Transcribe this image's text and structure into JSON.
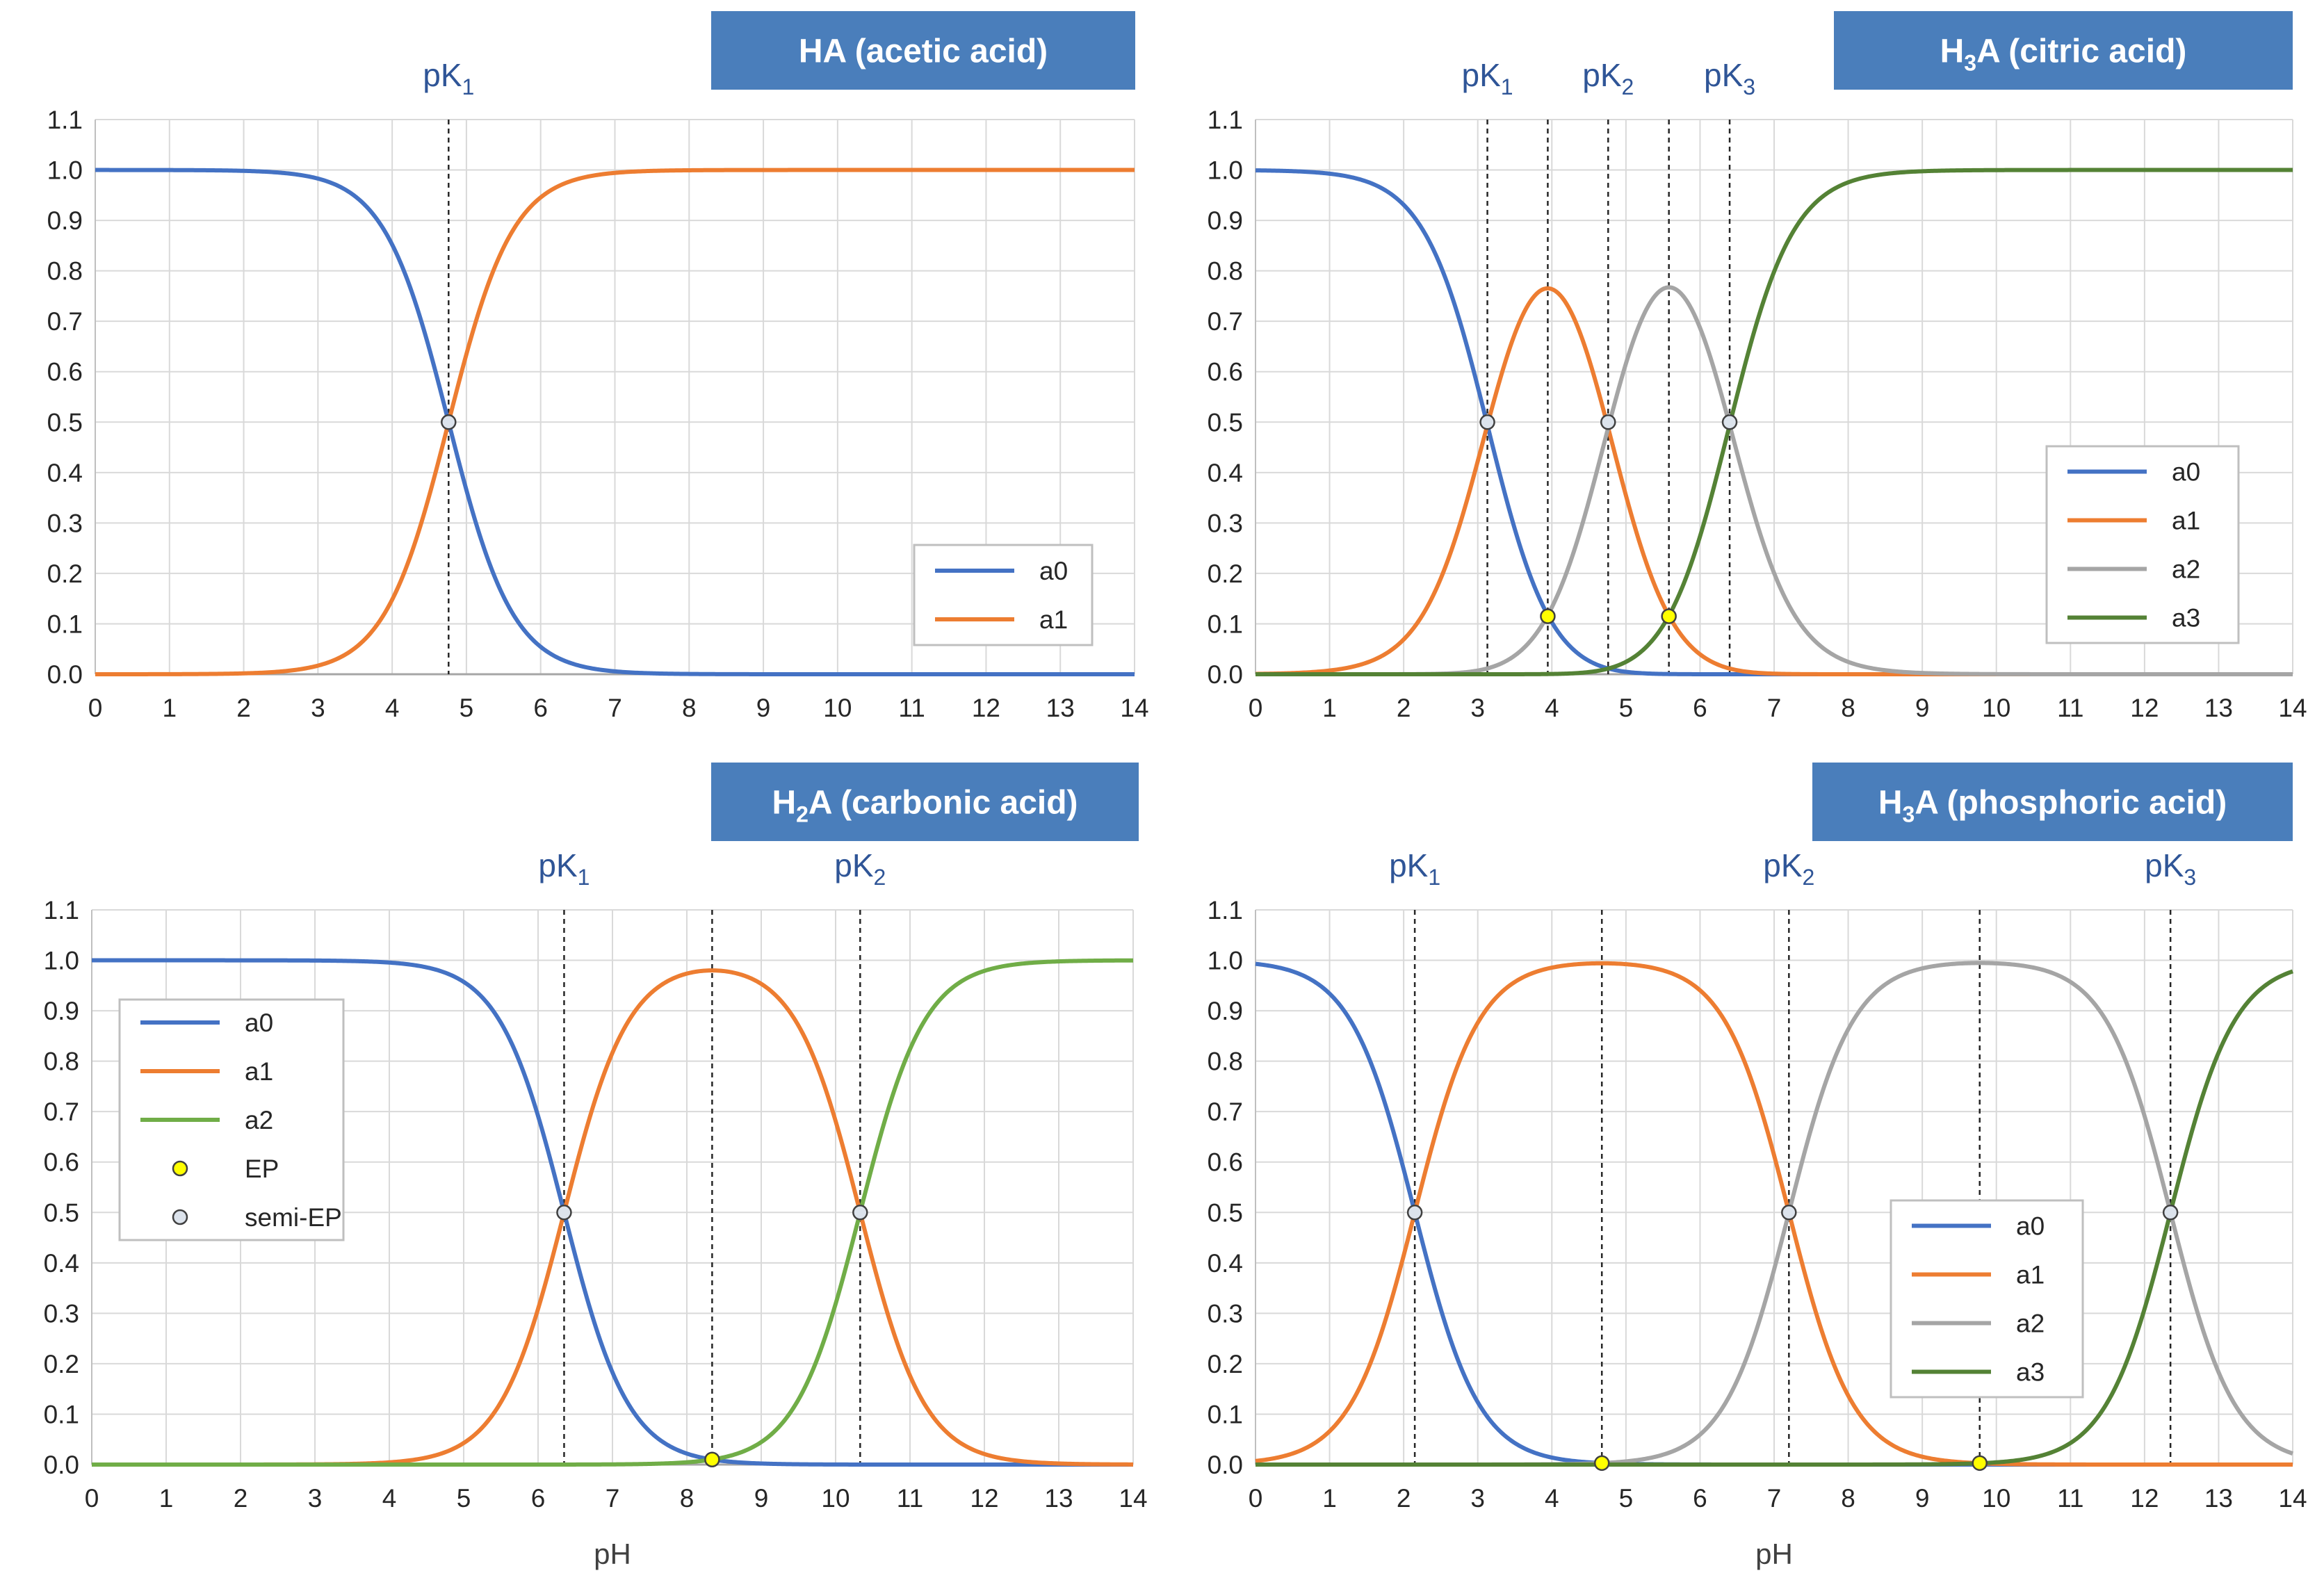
{
  "colors": {
    "a0": "#4472C4",
    "a1": "#ED7D31",
    "a2_gray": "#A5A5A5",
    "a2_green": "#70AD47",
    "a3": "#548235",
    "title_bg": "#4A7EBB",
    "pk_text": "#2F5597",
    "ep_fill": "#FFFF00",
    "semi_ep_fill": "#DCE3EC"
  },
  "chart_data": [
    {
      "type": "line",
      "title": {
        "text": "HA (acetic acid)",
        "pre": "HA",
        "sub": "",
        "post": " (acetic acid)"
      },
      "xlabel": "",
      "xlim": [
        0,
        14
      ],
      "ylim": [
        0,
        1.1
      ],
      "xticks": [
        "0",
        "1",
        "2",
        "3",
        "4",
        "5",
        "6",
        "7",
        "8",
        "9",
        "10",
        "11",
        "12",
        "13",
        "14"
      ],
      "yticks": [
        "0.0",
        "0.1",
        "0.2",
        "0.3",
        "0.4",
        "0.5",
        "0.6",
        "0.7",
        "0.8",
        "0.9",
        "1.0",
        "1.1"
      ],
      "pKa": [
        4.76
      ],
      "vlines": [
        4.76
      ],
      "pk_labels": [
        {
          "base": "pK",
          "sub": "1",
          "x": 4.76
        }
      ],
      "series": [
        {
          "name": "a0",
          "index": 0,
          "color": "#4472C4"
        },
        {
          "name": "a1",
          "index": 1,
          "color": "#ED7D31"
        }
      ],
      "ep": [],
      "semi_ep": [
        {
          "x": 4.76,
          "y": 0.5
        }
      ],
      "legend": {
        "position": "lower-right",
        "entries": [
          "a0",
          "a1"
        ]
      }
    },
    {
      "type": "line",
      "title": {
        "text": "H3A (citric acid)",
        "pre": "H",
        "sub": "3",
        "post": "A (citric acid)"
      },
      "xlabel": "",
      "xlim": [
        0,
        14
      ],
      "ylim": [
        0,
        1.1
      ],
      "xticks": [
        "0",
        "1",
        "2",
        "3",
        "4",
        "5",
        "6",
        "7",
        "8",
        "9",
        "10",
        "11",
        "12",
        "13",
        "14"
      ],
      "yticks": [
        "0.0",
        "0.1",
        "0.2",
        "0.3",
        "0.4",
        "0.5",
        "0.6",
        "0.7",
        "0.8",
        "0.9",
        "1.0",
        "1.1"
      ],
      "pKa": [
        3.13,
        4.76,
        6.4
      ],
      "vlines": [
        3.13,
        3.945,
        4.76,
        5.58,
        6.4
      ],
      "pk_labels": [
        {
          "base": "pK",
          "sub": "1",
          "x": 3.13
        },
        {
          "base": "pK",
          "sub": "2",
          "x": 4.76
        },
        {
          "base": "pK",
          "sub": "3",
          "x": 6.4
        }
      ],
      "series": [
        {
          "name": "a0",
          "index": 0,
          "color": "#4472C4"
        },
        {
          "name": "a1",
          "index": 1,
          "color": "#ED7D31"
        },
        {
          "name": "a2",
          "index": 2,
          "color": "#A5A5A5"
        },
        {
          "name": "a3",
          "index": 3,
          "color": "#548235"
        }
      ],
      "ep": [
        {
          "x": 3.945,
          "y": 0.115
        },
        {
          "x": 5.58,
          "y": 0.115
        }
      ],
      "semi_ep": [
        {
          "x": 3.13,
          "y": 0.5
        },
        {
          "x": 4.76,
          "y": 0.5
        },
        {
          "x": 6.4,
          "y": 0.5
        }
      ],
      "legend": {
        "position": "right-middle",
        "entries": [
          "a0",
          "a1",
          "a2",
          "a3"
        ]
      }
    },
    {
      "type": "line",
      "title": {
        "text": "H2A (carbonic acid)",
        "pre": "H",
        "sub": "2",
        "post": "A (carbonic acid)"
      },
      "xlabel": "pH",
      "xlim": [
        0,
        14
      ],
      "ylim": [
        0,
        1.1
      ],
      "xticks": [
        "0",
        "1",
        "2",
        "3",
        "4",
        "5",
        "6",
        "7",
        "8",
        "9",
        "10",
        "11",
        "12",
        "13",
        "14"
      ],
      "yticks": [
        "0.0",
        "0.1",
        "0.2",
        "0.3",
        "0.4",
        "0.5",
        "0.6",
        "0.7",
        "0.8",
        "0.9",
        "1.0",
        "1.1"
      ],
      "pKa": [
        6.35,
        10.33
      ],
      "vlines": [
        6.35,
        8.34,
        10.33
      ],
      "pk_labels": [
        {
          "base": "pK",
          "sub": "1",
          "x": 6.35
        },
        {
          "base": "pK",
          "sub": "2",
          "x": 10.33
        }
      ],
      "series": [
        {
          "name": "a0",
          "index": 0,
          "color": "#4472C4"
        },
        {
          "name": "a1",
          "index": 1,
          "color": "#ED7D31"
        },
        {
          "name": "a2",
          "index": 2,
          "color": "#70AD47"
        }
      ],
      "ep": [
        {
          "x": 8.34,
          "y": 0.01
        }
      ],
      "semi_ep": [
        {
          "x": 6.35,
          "y": 0.5
        },
        {
          "x": 10.33,
          "y": 0.5
        }
      ],
      "legend": {
        "position": "upper-left",
        "entries": [
          "a0",
          "a1",
          "a2",
          "EP",
          "semi-EP"
        ]
      }
    },
    {
      "type": "line",
      "title": {
        "text": "H3A (phosphoric acid)",
        "pre": "H",
        "sub": "3",
        "post": "A (phosphoric acid)"
      },
      "xlabel": "pH",
      "xlim": [
        0,
        14
      ],
      "ylim": [
        0,
        1.1
      ],
      "xticks": [
        "0",
        "1",
        "2",
        "3",
        "4",
        "5",
        "6",
        "7",
        "8",
        "9",
        "10",
        "11",
        "12",
        "13",
        "14"
      ],
      "yticks": [
        "0.0",
        "0.1",
        "0.2",
        "0.3",
        "0.4",
        "0.5",
        "0.6",
        "0.7",
        "0.8",
        "0.9",
        "1.0",
        "1.1"
      ],
      "pKa": [
        2.15,
        7.2,
        12.35
      ],
      "vlines": [
        2.15,
        4.675,
        7.2,
        9.775,
        12.35
      ],
      "pk_labels": [
        {
          "base": "pK",
          "sub": "1",
          "x": 2.15
        },
        {
          "base": "pK",
          "sub": "2",
          "x": 7.2
        },
        {
          "base": "pK",
          "sub": "3",
          "x": 12.35
        }
      ],
      "series": [
        {
          "name": "a0",
          "index": 0,
          "color": "#4472C4"
        },
        {
          "name": "a1",
          "index": 1,
          "color": "#ED7D31"
        },
        {
          "name": "a2",
          "index": 2,
          "color": "#A5A5A5"
        },
        {
          "name": "a3",
          "index": 3,
          "color": "#548235"
        }
      ],
      "ep": [
        {
          "x": 4.675,
          "y": 0.003
        },
        {
          "x": 9.775,
          "y": 0.003
        }
      ],
      "semi_ep": [
        {
          "x": 2.15,
          "y": 0.5
        },
        {
          "x": 7.2,
          "y": 0.5
        },
        {
          "x": 12.35,
          "y": 0.5
        }
      ],
      "legend": {
        "position": "lower-right",
        "entries": [
          "a0",
          "a1",
          "a2",
          "a3"
        ]
      }
    }
  ]
}
